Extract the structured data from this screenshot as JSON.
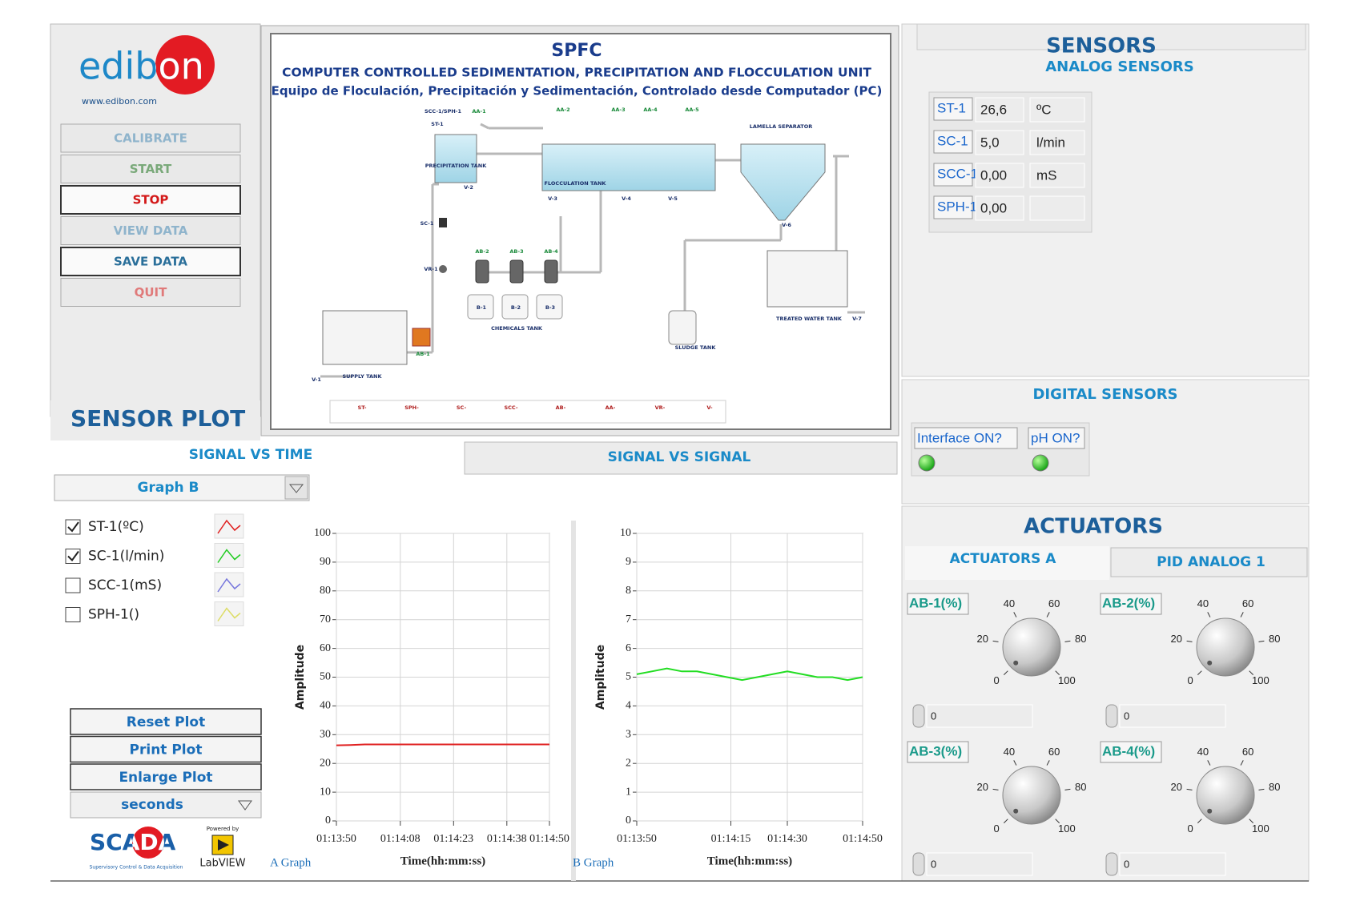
{
  "header": {
    "logo": "edibon",
    "url": "www.edibon.com"
  },
  "menu": [
    "CALIBRATE",
    "START",
    "STOP",
    "VIEW DATA",
    "SAVE DATA",
    "QUIT"
  ],
  "diagram": {
    "code": "SPFC",
    "title": "COMPUTER CONTROLLED SEDIMENTATION, PRECIPITATION AND FLOCCULATION UNIT",
    "subtitle": "Equipo de Floculación, Precipitación y Sedimentación, Controlado desde Computador (PC)",
    "labels": [
      "SCC-1/SPH-1",
      "ST-1",
      "AA-1",
      "AA-2",
      "AA-3",
      "AA-4",
      "AA-5",
      "PRECIPITATION TANK",
      "FLOCCULATION TANK",
      "LAMELLA SEPARATOR",
      "V-2",
      "V-3",
      "V-4",
      "V-5",
      "V-6",
      "SC-1",
      "VR-1",
      "AB-2",
      "AB-3",
      "AB-4",
      "B-1",
      "B-2",
      "B-3",
      "CHEMICALS TANK",
      "SUPPLY TANK",
      "AB-1",
      "V-1",
      "SLUDGE TANK",
      "TREATED WATER TANK",
      "V-7"
    ],
    "legend": [
      "ST-",
      "SPH-",
      "SC-",
      "SCC-",
      "AB-",
      "AA-",
      "VR-",
      "V-"
    ]
  },
  "sensor_plot": {
    "title": "SENSOR PLOT",
    "tabs": [
      "SIGNAL VS TIME",
      "SIGNAL VS SIGNAL"
    ],
    "graph_select": "Graph B",
    "channels": [
      {
        "label": "ST-1(ºC)",
        "checked": true,
        "color": "#e02020"
      },
      {
        "label": "SC-1(l/min)",
        "checked": true,
        "color": "#22cc22"
      },
      {
        "label": "SCC-1(mS)",
        "checked": false,
        "color": "#7777dd"
      },
      {
        "label": "SPH-1()",
        "checked": false,
        "color": "#dddd66"
      }
    ],
    "buttons": [
      "Reset Plot",
      "Print Plot",
      "Enlarge Plot"
    ],
    "units": "seconds"
  },
  "chart_data": [
    {
      "type": "line",
      "caption": "A Graph",
      "x_label": "Time(hh:mm:ss)",
      "y_label": "Amplitude",
      "x": [
        "01:13:50",
        "01:13:54",
        "01:13:58",
        "01:14:02",
        "01:14:06",
        "01:14:10",
        "01:14:14",
        "01:14:18",
        "01:14:22",
        "01:14:26",
        "01:14:30",
        "01:14:34",
        "01:14:38",
        "01:14:42",
        "01:14:46",
        "01:14:50"
      ],
      "series": [
        {
          "color": "#e02020",
          "values": [
            26.3,
            26.4,
            26.6,
            26.6,
            26.6,
            26.6,
            26.6,
            26.6,
            26.6,
            26.6,
            26.6,
            26.6,
            26.6,
            26.6,
            26.6,
            26.6
          ]
        }
      ],
      "xlim": [
        "01:13:50",
        "01:14:50"
      ],
      "xticks": [
        "01:13:50",
        "01:14:08",
        "01:14:23",
        "01:14:38",
        "01:14:50"
      ],
      "ylim": [
        0,
        100
      ],
      "yticks": [
        0,
        10,
        20,
        30,
        40,
        50,
        60,
        70,
        80,
        90,
        100
      ],
      "grid": true
    },
    {
      "type": "line",
      "caption": "B Graph",
      "x_label": "Time(hh:mm:ss)",
      "y_label": "Amplitude",
      "x": [
        "01:13:50",
        "01:13:54",
        "01:13:58",
        "01:14:02",
        "01:14:06",
        "01:14:10",
        "01:14:14",
        "01:14:18",
        "01:14:22",
        "01:14:26",
        "01:14:30",
        "01:14:34",
        "01:14:38",
        "01:14:42",
        "01:14:46",
        "01:14:50"
      ],
      "series": [
        {
          "color": "#22dd22",
          "values": [
            5.1,
            5.2,
            5.3,
            5.2,
            5.2,
            5.1,
            5.0,
            4.9,
            5.0,
            5.1,
            5.2,
            5.1,
            5.0,
            5.0,
            4.9,
            5.0
          ]
        }
      ],
      "xlim": [
        "01:13:50",
        "01:14:50"
      ],
      "xticks": [
        "01:13:50",
        "01:14:15",
        "01:14:30",
        "01:14:50"
      ],
      "ylim": [
        0,
        10
      ],
      "yticks": [
        0,
        1,
        2,
        3,
        4,
        5,
        6,
        7,
        8,
        9,
        10
      ],
      "grid": true
    }
  ],
  "sensors": {
    "title": "SENSORS",
    "analog_title": "ANALOG SENSORS",
    "analog": [
      {
        "tag": "ST-1",
        "value": "26,6",
        "unit": "ºC"
      },
      {
        "tag": "SC-1",
        "value": "5,0",
        "unit": "l/min"
      },
      {
        "tag": "SCC-1",
        "value": "0,00",
        "unit": "mS"
      },
      {
        "tag": "SPH-1",
        "value": "0,00"
      }
    ],
    "digital_title": "DIGITAL SENSORS",
    "digital": [
      "Interface ON?",
      "pH ON?"
    ]
  },
  "actuators": {
    "title": "ACTUATORS",
    "tabs": [
      "ACTUATORS A",
      "PID ANALOG 1"
    ],
    "scale": [
      0,
      20,
      40,
      60,
      80,
      100
    ],
    "knobs": [
      {
        "label": "AB-1(%)",
        "value": 0
      },
      {
        "label": "AB-2(%)",
        "value": 0
      },
      {
        "label": "AB-3(%)",
        "value": 0
      },
      {
        "label": "AB-4(%)",
        "value": 0
      }
    ]
  },
  "footer": {
    "scada": "SCADA",
    "scada_sub": "Supervisory Control & Data Acquisition",
    "powered": "Powered by",
    "labview": "LabVIEW"
  }
}
